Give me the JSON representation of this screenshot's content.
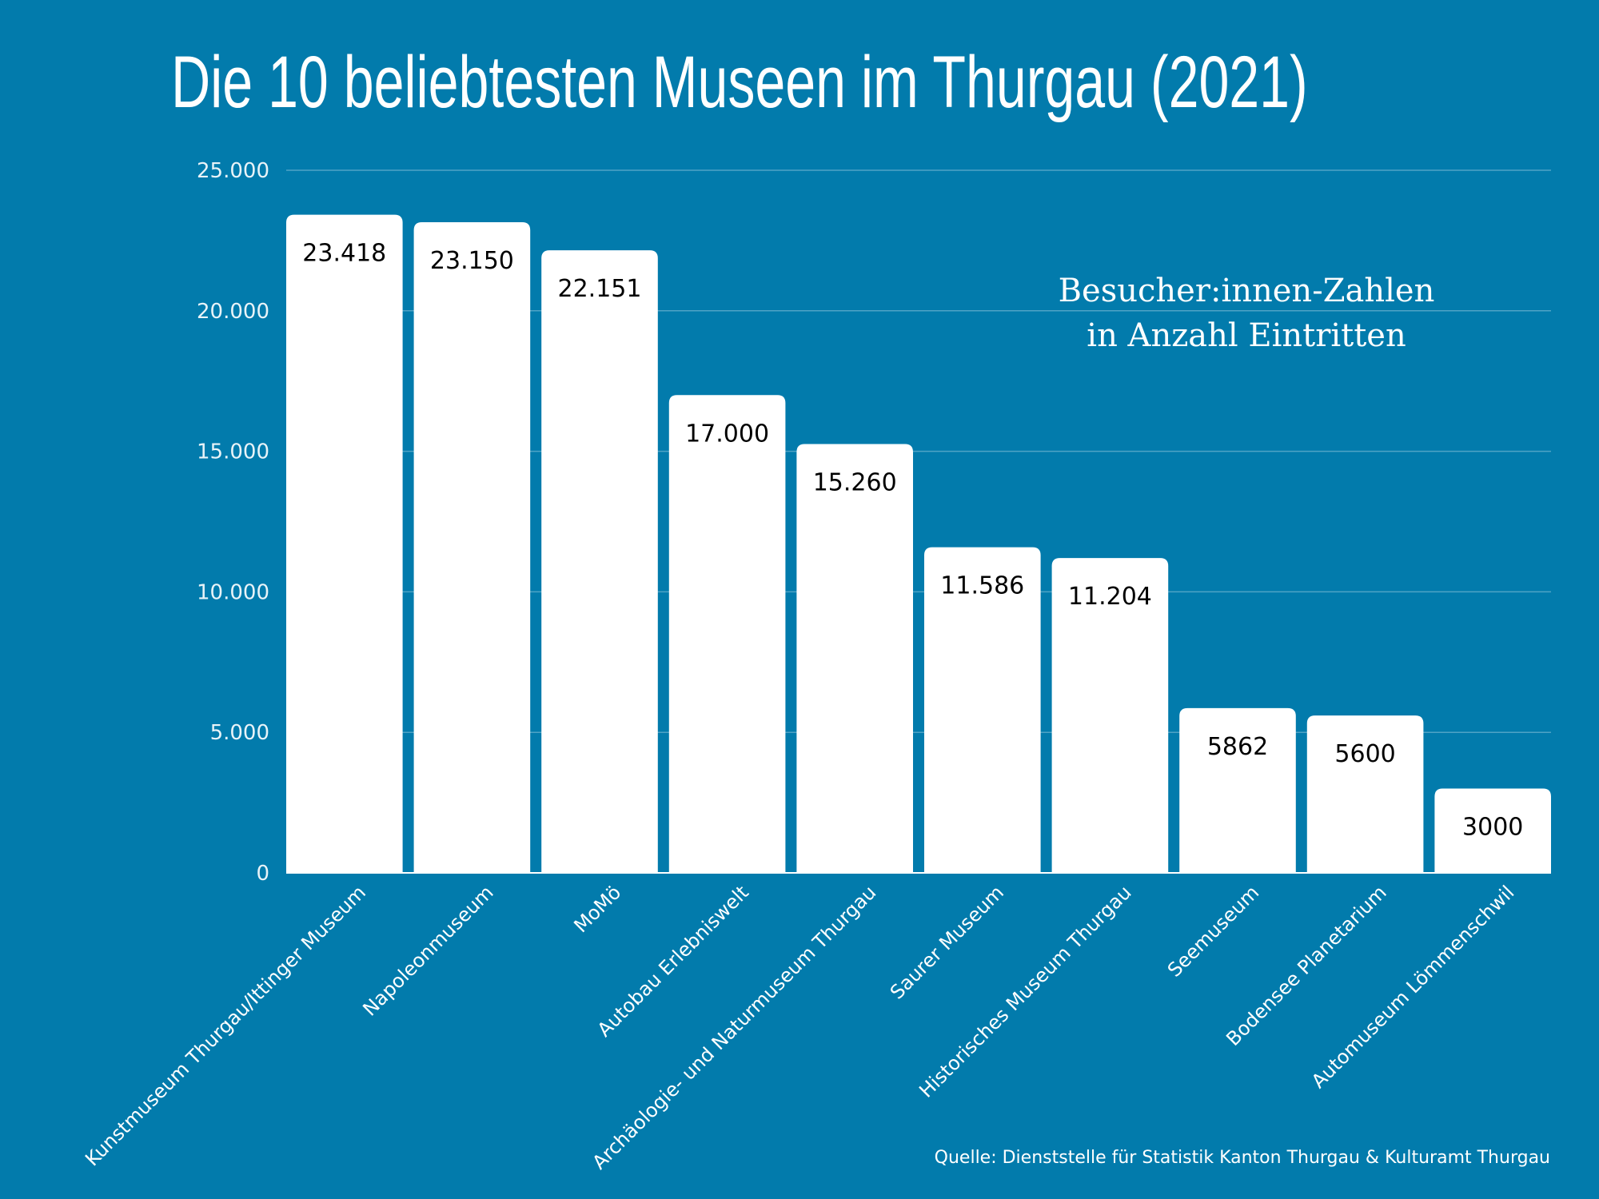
{
  "chart_data": {
    "type": "bar",
    "title": "Die 10 beliebtesten Museen im Thurgau (2021)",
    "subtitle": [
      "Besucher:innen-Zahlen",
      "in Anzahl Eintritten"
    ],
    "source": "Quelle: Dienststelle für Statistik Kanton Thurgau & Kulturamt Thurgau",
    "categories": [
      "Kunstmuseum Thurgau/Ittinger Museum",
      "Napoleonmuseum",
      "MoMö",
      "Autobau Erlebniswelt",
      "Archäologie- und Naturmuseum Thurgau",
      "Saurer Museum",
      "Historisches Museum Thurgau",
      "Seemuseum",
      "Bodensee Planetarium",
      "Automuseum Lömmenschwil"
    ],
    "values": [
      23418,
      23150,
      22151,
      17000,
      15260,
      11586,
      11204,
      5862,
      5600,
      3000
    ],
    "data_labels": [
      "23.418",
      "23.150",
      "22.151",
      "17.000",
      "15.260",
      "11.586",
      "11.204",
      "5862",
      "5600",
      "3000"
    ],
    "yticks": [
      0,
      5000,
      10000,
      15000,
      20000,
      25000
    ],
    "ytick_labels": [
      "0",
      "5.000",
      "10.000",
      "15.000",
      "20.000",
      "25.000"
    ],
    "ylim": [
      0,
      25000
    ],
    "xlabel": "",
    "ylabel": "",
    "grid": true,
    "colors": {
      "background": "#027bac",
      "bar": "#ffffff",
      "grid": "#4fa3c6",
      "label": "#000000"
    }
  }
}
